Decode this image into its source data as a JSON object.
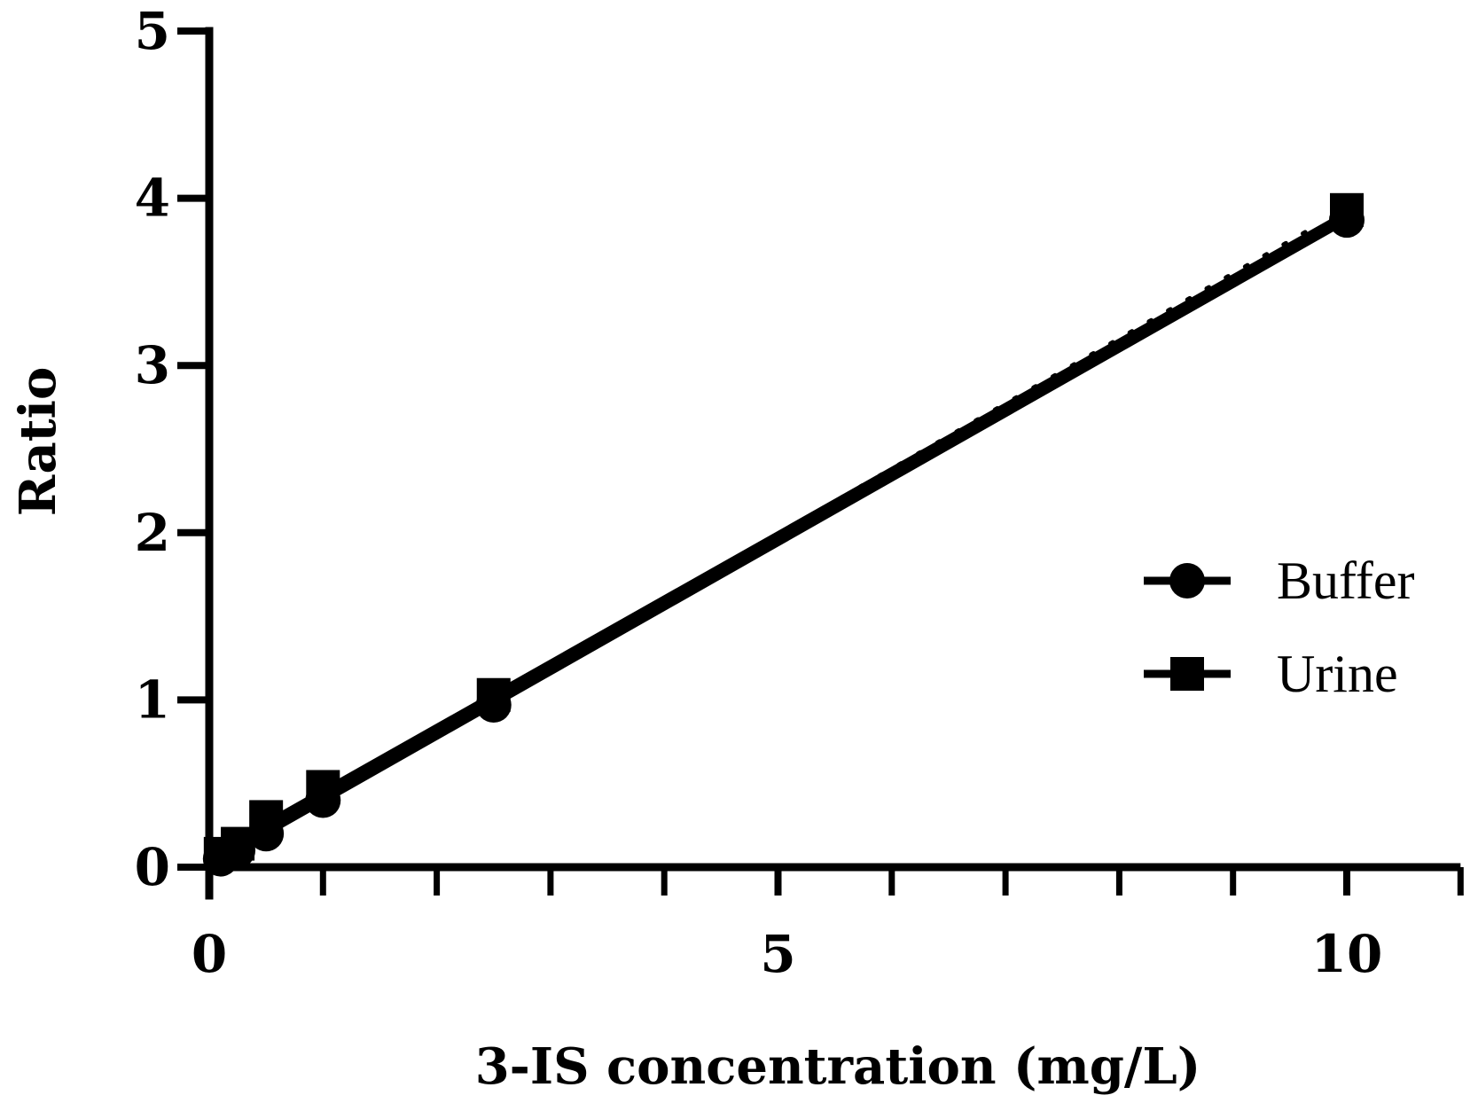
{
  "chart_data": {
    "type": "scatter",
    "title": "",
    "xlabel": "3-IS concentration (mg/L)",
    "ylabel": "Ratio",
    "xlim": [
      0,
      11
    ],
    "ylim": [
      0,
      5
    ],
    "x_ticks": [
      0,
      5,
      10
    ],
    "y_ticks": [
      0,
      1,
      2,
      3,
      4,
      5
    ],
    "x_minor_step": 1,
    "grid": false,
    "legend_position": "right",
    "series": [
      {
        "name": "Buffer",
        "marker": "circle",
        "x": [
          0.1,
          0.25,
          0.5,
          1,
          2.5,
          10
        ],
        "y": [
          0.05,
          0.1,
          0.2,
          0.4,
          0.97,
          3.87
        ],
        "fit": {
          "x": [
            0,
            10
          ],
          "y": [
            0.02,
            3.88
          ]
        }
      },
      {
        "name": "Urine",
        "marker": "square",
        "x": [
          0.1,
          0.25,
          0.5,
          1,
          2.5,
          10
        ],
        "y": [
          0.08,
          0.14,
          0.3,
          0.48,
          1.03,
          3.93
        ],
        "fit": {
          "x": [
            0,
            10
          ],
          "y": [
            0.07,
            3.91
          ]
        }
      }
    ]
  }
}
